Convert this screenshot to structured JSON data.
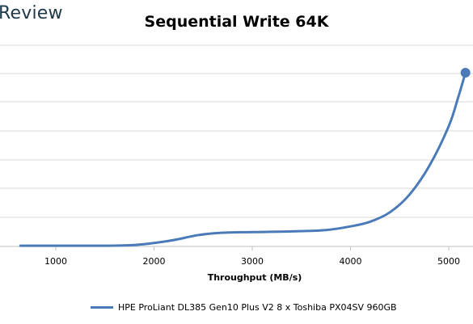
{
  "brand": "Review",
  "chart_data": {
    "type": "line",
    "title": "Sequential Write 64K",
    "xlabel": "Throughput (MB/s)",
    "ylabel": "",
    "xlim": [
      520,
      5170
    ],
    "x_ticks": [
      1000,
      2000,
      3000,
      4000,
      5000
    ],
    "grid": true,
    "legend": "bottom",
    "series": [
      {
        "name": "HPE ProLiant DL385 Gen10 Plus V2 8 x Toshiba PX04SV 960GB",
        "color": "#4a7ab8",
        "points": [
          [
            640,
            0.22
          ],
          [
            1000,
            0.22
          ],
          [
            1500,
            0.22
          ],
          [
            1750,
            0.35
          ],
          [
            1950,
            0.85
          ],
          [
            2200,
            1.9
          ],
          [
            2450,
            3.4
          ],
          [
            2700,
            4.1
          ],
          [
            3000,
            4.3
          ],
          [
            3400,
            4.5
          ],
          [
            3750,
            4.9
          ],
          [
            4000,
            6.0
          ],
          [
            4200,
            7.4
          ],
          [
            4400,
            10.2
          ],
          [
            4600,
            15.5
          ],
          [
            4800,
            24.0
          ],
          [
            5000,
            36.0
          ],
          [
            5100,
            45.0
          ],
          [
            5170,
            52.0
          ]
        ]
      }
    ]
  }
}
